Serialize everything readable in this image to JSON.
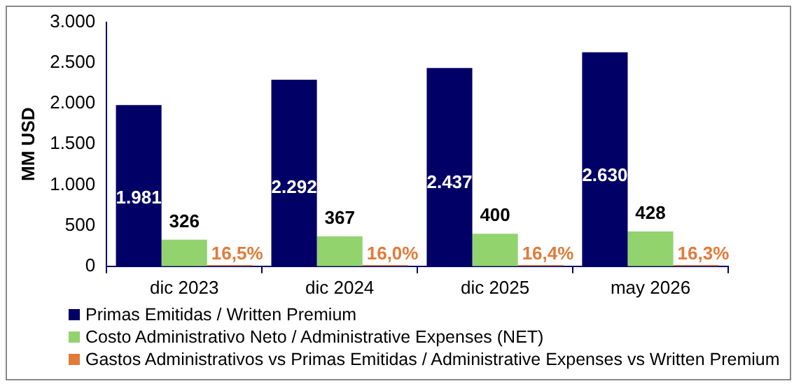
{
  "chart_data": {
    "type": "bar",
    "ylabel": "MM USD",
    "categories": [
      "dic 2023",
      "dic 2024",
      "dic 2025",
      "may 2026"
    ],
    "series": [
      {
        "name": "Primas Emitidas / Written Premium",
        "color": "#000066",
        "values": [
          1981,
          2292,
          2437,
          2630
        ],
        "value_labels": [
          "1.981",
          "2.292",
          "2.437",
          "2.630"
        ]
      },
      {
        "name": "Costo Administrativo Neto / Administrative Expenses (NET)",
        "color": "#92d36e",
        "values": [
          326,
          367,
          400,
          428
        ],
        "value_labels": [
          "326",
          "367",
          "400",
          "428"
        ]
      },
      {
        "name": "Gastos Administrativos vs Primas Emitidas / Administrative Expenses vs Written Premium",
        "color": "#e07b39",
        "values": [
          16.5,
          16.0,
          16.4,
          16.3
        ],
        "value_labels": [
          "16,5%",
          "16,0%",
          "16,4%",
          "16,3%"
        ]
      }
    ],
    "ylim": [
      0,
      3000
    ],
    "yticks": [
      {
        "value": 0,
        "label": "0"
      },
      {
        "value": 500,
        "label": "500"
      },
      {
        "value": 1000,
        "label": "1.000"
      },
      {
        "value": 1500,
        "label": "1.500"
      },
      {
        "value": 2000,
        "label": "2.000"
      },
      {
        "value": 2500,
        "label": "2.500"
      },
      {
        "value": 3000,
        "label": "3.000"
      }
    ],
    "grid": false,
    "legend": "bottom"
  }
}
